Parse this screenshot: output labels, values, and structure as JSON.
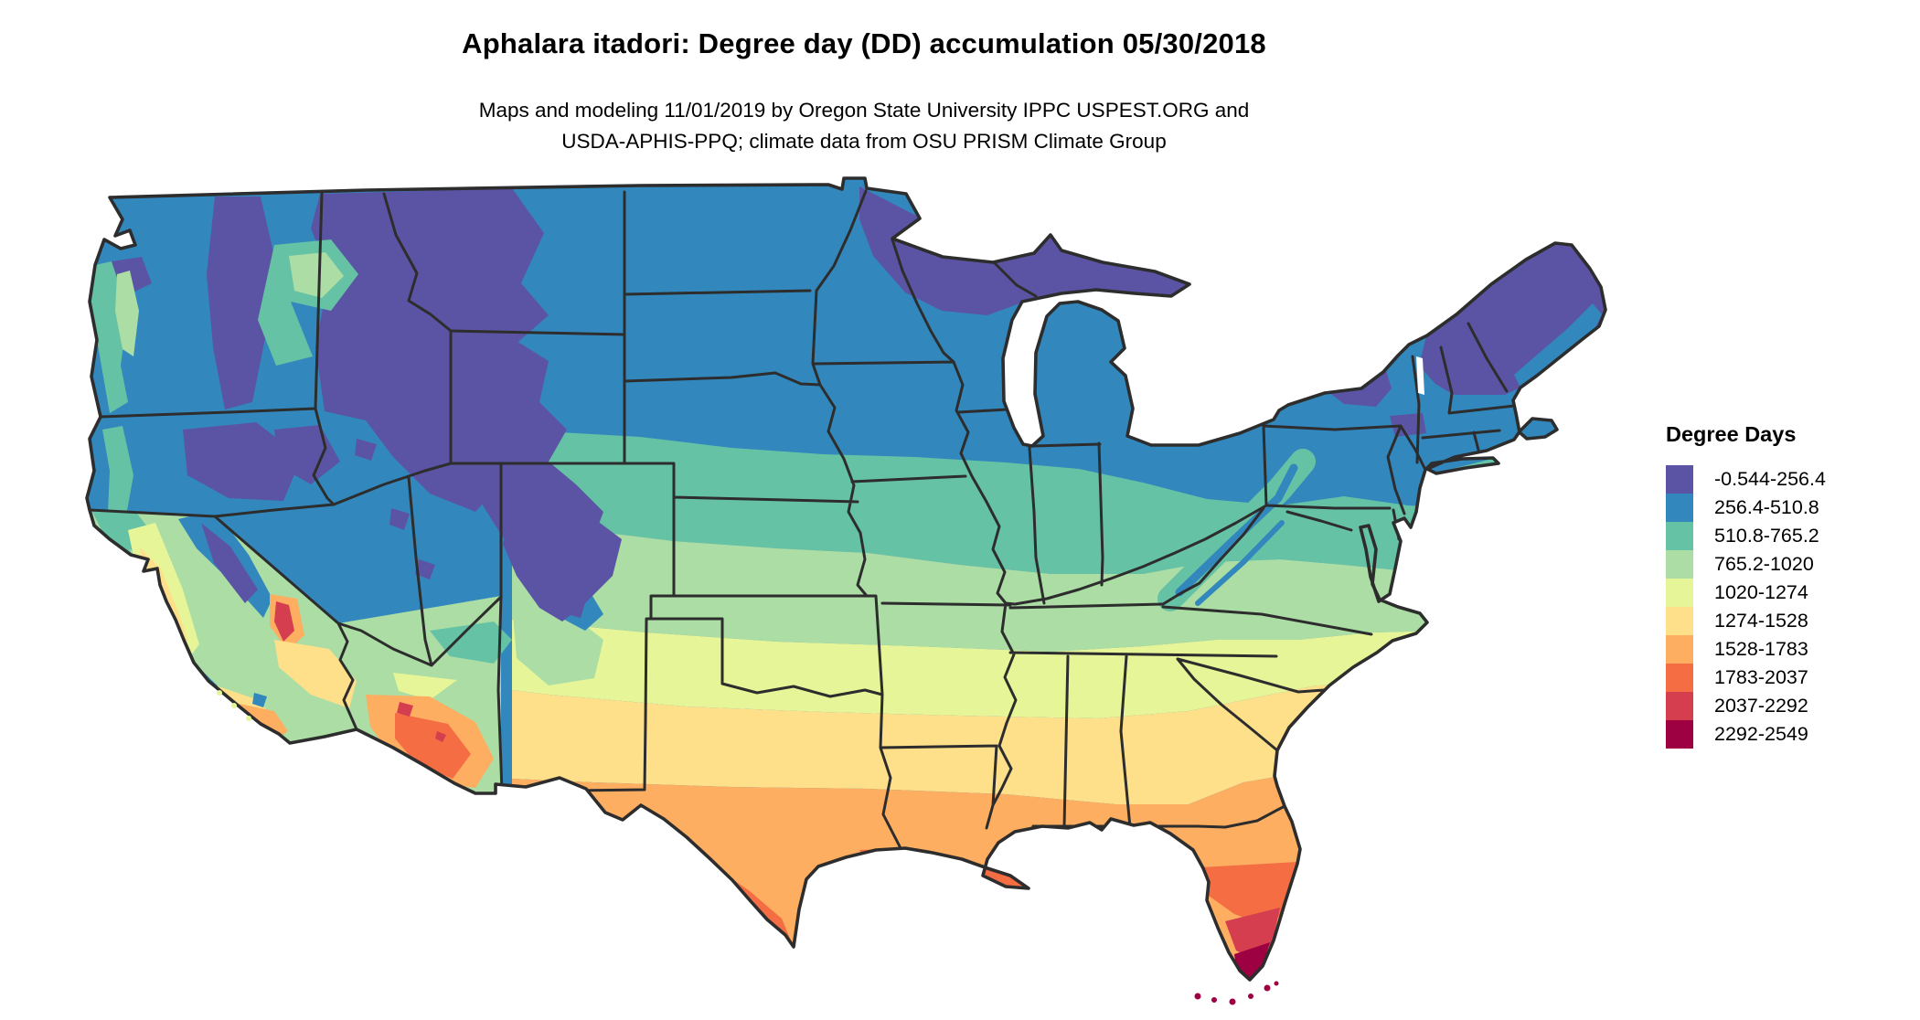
{
  "title": "Aphalara itadori: Degree day (DD) accumulation 05/30/2018",
  "subtitle_line1": "Maps and modeling 11/01/2019 by Oregon State University IPPC USPEST.ORG and",
  "subtitle_line2": "USDA-APHIS-PPQ; climate data from OSU PRISM Climate Group",
  "legend": {
    "title": "Degree Days",
    "items": [
      {
        "range": "-0.544-256.4",
        "color": "#5b54a4"
      },
      {
        "range": "256.4-510.8",
        "color": "#3288bd"
      },
      {
        "range": "510.8-765.2",
        "color": "#66c2a5"
      },
      {
        "range": "765.2-1020",
        "color": "#abdda4"
      },
      {
        "range": "1020-1274",
        "color": "#e6f598"
      },
      {
        "range": "1274-1528",
        "color": "#fee08b"
      },
      {
        "range": "1528-1783",
        "color": "#fdae61"
      },
      {
        "range": "1783-2037",
        "color": "#f46d43"
      },
      {
        "range": "2037-2292",
        "color": "#d53e4f"
      },
      {
        "range": "2292-2549",
        "color": "#9e0142"
      }
    ]
  },
  "map": {
    "region_label": "Contiguous United States degree-day raster",
    "border_color": "#2d2d2d",
    "background_color": "#ffffff"
  }
}
